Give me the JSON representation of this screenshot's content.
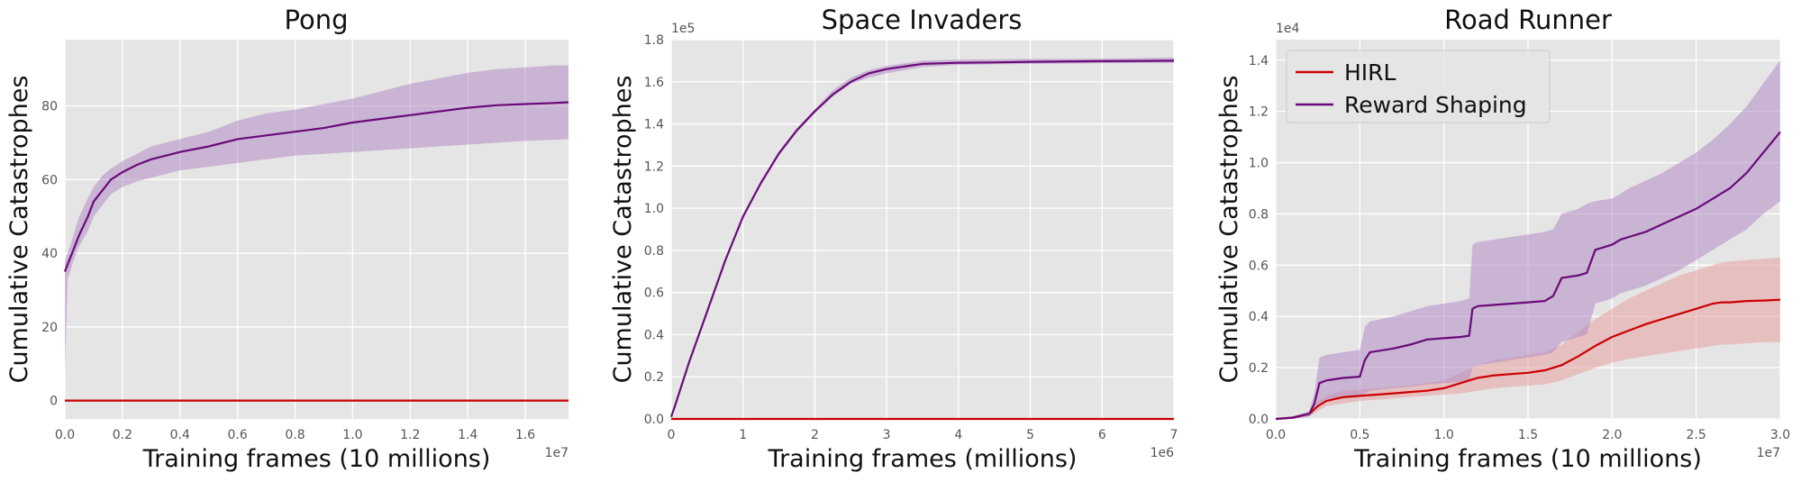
{
  "chart_data": [
    {
      "type": "line",
      "title": "Pong",
      "xlabel": "Training frames (10 millions)",
      "ylabel": "Cumulative Catastrophes",
      "x_offset_label": "1e7",
      "y_offset_label": "",
      "xlim": [
        0,
        1.75
      ],
      "ylim": [
        -5,
        98
      ],
      "xticks": [
        0.0,
        0.2,
        0.4,
        0.6,
        0.8,
        1.0,
        1.2,
        1.4,
        1.6
      ],
      "xtick_labels": [
        "0.0",
        "0.2",
        "0.4",
        "0.6",
        "0.8",
        "1.0",
        "1.2",
        "1.4",
        "1.6"
      ],
      "yticks": [
        0,
        20,
        40,
        60,
        80
      ],
      "ytick_labels": [
        "0",
        "20",
        "40",
        "60",
        "80"
      ],
      "grid": true,
      "series": [
        {
          "color": "#cc0000",
          "x": [
            0,
            1.75
          ],
          "values": [
            0,
            0
          ]
        },
        {
          "color": "#6a0a7a",
          "band_color": "#b48cc4",
          "x": [
            0,
            0.01,
            0.03,
            0.05,
            0.08,
            0.1,
            0.13,
            0.16,
            0.2,
            0.25,
            0.3,
            0.35,
            0.4,
            0.5,
            0.6,
            0.7,
            0.8,
            0.9,
            1.0,
            1.1,
            1.2,
            1.3,
            1.4,
            1.5,
            1.6,
            1.7,
            1.75
          ],
          "values": [
            35,
            37,
            41,
            45,
            50,
            54,
            57,
            60,
            62,
            64,
            65.5,
            66.5,
            67.5,
            69,
            71,
            72,
            73,
            74,
            75.5,
            76.5,
            77.5,
            78.5,
            79.5,
            80.2,
            80.5,
            80.8,
            81
          ],
          "lower": [
            8,
            33,
            38,
            42,
            46,
            50,
            53,
            56,
            58,
            59.5,
            60.5,
            61.5,
            62.5,
            63.5,
            64.5,
            65.5,
            66.5,
            67,
            67.5,
            68,
            68.5,
            69,
            69.5,
            70,
            70.5,
            70.8,
            71
          ],
          "upper": [
            38,
            40,
            45,
            50,
            55,
            58,
            61,
            63,
            65,
            67,
            69,
            70,
            71,
            73,
            76,
            78,
            79,
            80.5,
            82,
            84,
            86,
            87.5,
            89,
            90,
            90.5,
            91,
            91
          ]
        }
      ]
    },
    {
      "type": "line",
      "title": "Space Invaders",
      "xlabel": "Training frames (millions)",
      "ylabel": "Cumulative Catastrophes",
      "x_offset_label": "1e6",
      "y_offset_label": "1e5",
      "xlim": [
        0,
        7
      ],
      "ylim": [
        0,
        1.8
      ],
      "xticks": [
        0,
        1,
        2,
        3,
        4,
        5,
        6,
        7
      ],
      "xtick_labels": [
        "0",
        "1",
        "2",
        "3",
        "4",
        "5",
        "6",
        "7"
      ],
      "yticks": [
        0.0,
        0.2,
        0.4,
        0.6,
        0.8,
        1.0,
        1.2,
        1.4,
        1.6,
        1.8
      ],
      "ytick_labels": [
        "0.0",
        "0.2",
        "0.4",
        "0.6",
        "0.8",
        "1.0",
        "1.2",
        "1.4",
        "1.6",
        "1.8"
      ],
      "grid": true,
      "series": [
        {
          "color": "#cc0000",
          "x": [
            0,
            7
          ],
          "values": [
            0,
            0
          ]
        },
        {
          "color": "#6a0a7a",
          "band_color": "#b48cc4",
          "x": [
            0,
            0.05,
            0.25,
            0.5,
            0.75,
            1.0,
            1.25,
            1.5,
            1.75,
            2.0,
            2.25,
            2.5,
            2.75,
            3.0,
            3.5,
            4.0,
            4.5,
            5.0,
            6.0,
            7.0
          ],
          "values": [
            0.01,
            0.06,
            0.27,
            0.51,
            0.75,
            0.96,
            1.12,
            1.26,
            1.37,
            1.46,
            1.54,
            1.6,
            1.64,
            1.66,
            1.685,
            1.69,
            1.692,
            1.695,
            1.698,
            1.7
          ],
          "lower": [
            0.0,
            0.05,
            0.26,
            0.5,
            0.74,
            0.95,
            1.11,
            1.25,
            1.36,
            1.45,
            1.53,
            1.59,
            1.62,
            1.64,
            1.67,
            1.68,
            1.683,
            1.685,
            1.688,
            1.69
          ],
          "upper": [
            0.02,
            0.07,
            0.28,
            0.52,
            0.76,
            0.97,
            1.13,
            1.27,
            1.38,
            1.47,
            1.56,
            1.62,
            1.655,
            1.675,
            1.7,
            1.705,
            1.707,
            1.708,
            1.71,
            1.715
          ]
        }
      ]
    },
    {
      "type": "line",
      "title": "Road Runner",
      "xlabel": "Training frames (10 millions)",
      "ylabel": "Cumulative Catastrophes",
      "x_offset_label": "1e7",
      "y_offset_label": "1e4",
      "xlim": [
        0,
        3.0
      ],
      "ylim": [
        0,
        1.48
      ],
      "xticks": [
        0.0,
        0.5,
        1.0,
        1.5,
        2.0,
        2.5,
        3.0
      ],
      "xtick_labels": [
        "0.0",
        "0.5",
        "1.0",
        "1.5",
        "2.0",
        "2.5",
        "3.0"
      ],
      "yticks": [
        0.0,
        0.2,
        0.4,
        0.6,
        0.8,
        1.0,
        1.2,
        1.4
      ],
      "ytick_labels": [
        "0.0",
        "0.2",
        "0.4",
        "0.6",
        "0.8",
        "1.0",
        "1.2",
        "1.4"
      ],
      "grid": true,
      "legend": {
        "position": "top-left",
        "entries": [
          {
            "label": "HIRL",
            "color": "#cc0000"
          },
          {
            "label": "Reward Shaping",
            "color": "#6a0a7a"
          }
        ]
      },
      "series": [
        {
          "name": "HIRL",
          "color": "#cc0000",
          "band_color": "#e8a0a0",
          "x": [
            0,
            0.1,
            0.2,
            0.25,
            0.3,
            0.4,
            0.5,
            0.6,
            0.7,
            0.8,
            0.9,
            1.0,
            1.1,
            1.2,
            1.3,
            1.4,
            1.5,
            1.6,
            1.7,
            1.8,
            1.9,
            2.0,
            2.1,
            2.2,
            2.3,
            2.4,
            2.5,
            2.6,
            2.65,
            2.7,
            2.8,
            2.9,
            3.0
          ],
          "values": [
            0.0,
            0.005,
            0.02,
            0.05,
            0.07,
            0.085,
            0.09,
            0.095,
            0.1,
            0.105,
            0.11,
            0.12,
            0.14,
            0.16,
            0.17,
            0.175,
            0.18,
            0.19,
            0.21,
            0.245,
            0.285,
            0.32,
            0.345,
            0.37,
            0.39,
            0.41,
            0.43,
            0.45,
            0.455,
            0.455,
            0.46,
            0.462,
            0.465
          ],
          "lower": [
            0.0,
            0.0,
            0.01,
            0.03,
            0.05,
            0.06,
            0.07,
            0.075,
            0.08,
            0.085,
            0.09,
            0.095,
            0.1,
            0.11,
            0.12,
            0.125,
            0.13,
            0.135,
            0.15,
            0.175,
            0.2,
            0.22,
            0.235,
            0.245,
            0.255,
            0.265,
            0.275,
            0.285,
            0.29,
            0.29,
            0.295,
            0.3,
            0.3
          ],
          "upper": [
            0.0,
            0.01,
            0.03,
            0.07,
            0.09,
            0.11,
            0.115,
            0.12,
            0.125,
            0.13,
            0.14,
            0.15,
            0.18,
            0.21,
            0.23,
            0.24,
            0.25,
            0.26,
            0.29,
            0.34,
            0.39,
            0.43,
            0.47,
            0.5,
            0.53,
            0.56,
            0.58,
            0.6,
            0.61,
            0.615,
            0.62,
            0.625,
            0.63
          ]
        },
        {
          "name": "Reward Shaping",
          "color": "#6a0a7a",
          "band_color": "#b48cc4",
          "x": [
            0,
            0.1,
            0.2,
            0.23,
            0.26,
            0.3,
            0.4,
            0.5,
            0.53,
            0.56,
            0.7,
            0.8,
            0.85,
            0.9,
            1.0,
            1.1,
            1.15,
            1.17,
            1.2,
            1.3,
            1.4,
            1.5,
            1.6,
            1.65,
            1.7,
            1.8,
            1.85,
            1.9,
            2.0,
            2.05,
            2.1,
            2.2,
            2.3,
            2.4,
            2.5,
            2.6,
            2.7,
            2.8,
            2.9,
            3.0
          ],
          "values": [
            0.0,
            0.005,
            0.02,
            0.06,
            0.14,
            0.15,
            0.16,
            0.165,
            0.23,
            0.26,
            0.275,
            0.29,
            0.3,
            0.31,
            0.315,
            0.32,
            0.325,
            0.43,
            0.44,
            0.445,
            0.45,
            0.455,
            0.46,
            0.48,
            0.55,
            0.56,
            0.57,
            0.66,
            0.68,
            0.7,
            0.71,
            0.73,
            0.76,
            0.79,
            0.82,
            0.86,
            0.9,
            0.96,
            1.04,
            1.12
          ],
          "lower": [
            0.0,
            0.0,
            0.01,
            0.03,
            0.06,
            0.07,
            0.08,
            0.085,
            0.1,
            0.11,
            0.12,
            0.125,
            0.13,
            0.135,
            0.14,
            0.145,
            0.15,
            0.2,
            0.21,
            0.22,
            0.23,
            0.24,
            0.25,
            0.26,
            0.3,
            0.32,
            0.33,
            0.45,
            0.47,
            0.49,
            0.5,
            0.52,
            0.55,
            0.58,
            0.62,
            0.66,
            0.7,
            0.74,
            0.8,
            0.85
          ],
          "upper": [
            0.0,
            0.01,
            0.03,
            0.1,
            0.24,
            0.25,
            0.26,
            0.27,
            0.36,
            0.38,
            0.4,
            0.42,
            0.43,
            0.44,
            0.45,
            0.46,
            0.47,
            0.68,
            0.69,
            0.7,
            0.71,
            0.72,
            0.73,
            0.74,
            0.8,
            0.82,
            0.84,
            0.85,
            0.86,
            0.88,
            0.9,
            0.93,
            0.96,
            1.0,
            1.04,
            1.09,
            1.15,
            1.22,
            1.31,
            1.4
          ]
        }
      ]
    }
  ]
}
